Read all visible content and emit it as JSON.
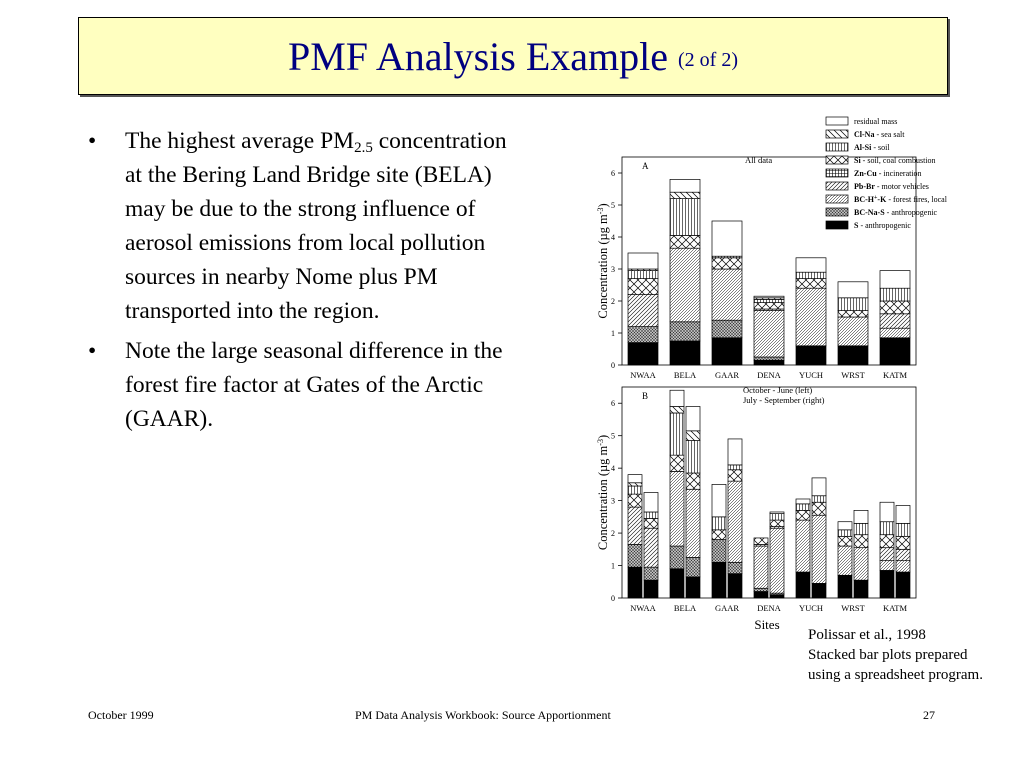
{
  "slide": {
    "title": "PMF Analysis Example",
    "title_suffix": "(2 of 2)",
    "bullets": [
      {
        "text_before": "The highest average PM",
        "subscript": "2.5",
        "text_after": " concentration at the Bering Land Bridge site (BELA) may be due to the strong influence of aerosol emissions from local pollution sources in nearby Nome plus PM transported into the region."
      },
      {
        "text_before": "Note the large seasonal difference in the forest fire factor at Gates of the Arctic (GAAR).",
        "subscript": "",
        "text_after": ""
      }
    ],
    "bullet_glyph": "•",
    "citation": [
      "Polissar et al., 1998",
      "Stacked bar plots prepared",
      "using a spreadsheet program."
    ],
    "footer": {
      "left": "October 1999",
      "center": "PM Data Analysis Workbook: Source Apportionment",
      "right": "27"
    },
    "colors": {
      "title_bg": "#ffffc0",
      "title_text": "#000080"
    }
  },
  "chart_data": [
    {
      "type": "bar",
      "stacked": true,
      "panel_label": "A",
      "annotation": [
        "All data"
      ],
      "ylabel": "Concentration  (µg m-3)",
      "ylim": [
        0,
        6.5
      ],
      "yticks": [
        0,
        1,
        2,
        3,
        4,
        5,
        6
      ],
      "categories": [
        "NWAA",
        "BELA",
        "GAAR",
        "DENA",
        "YUCH",
        "WRST",
        "KATM"
      ],
      "legend": {
        "placement": "top-right",
        "entries": [
          {
            "bold": "",
            "text": "residual mass",
            "pattern": "residual"
          },
          {
            "bold": "Cl-Na",
            "text": " - sea salt",
            "pattern": "seasalt"
          },
          {
            "bold": "Al-Si",
            "text": " - soil",
            "pattern": "soil"
          },
          {
            "bold": "Si",
            "text": " - soil, coal combustion",
            "pattern": "coal"
          },
          {
            "bold": "Zn-Cu",
            "text": " - incineration",
            "pattern": "incin"
          },
          {
            "bold": "Pb-Br",
            "text": " - motor vehicles",
            "pattern": "motor"
          },
          {
            "bold": "BC-H+-K",
            "text": " - forest fires, local",
            "pattern": "fire"
          },
          {
            "bold": "BC-Na-S",
            "text": " - anthropogenic",
            "pattern": "anthbc"
          },
          {
            "bold": "S",
            "text": " - anthropogenic",
            "pattern": "sulfate"
          }
        ]
      },
      "series_order": [
        "sulfate",
        "anthbc",
        "fire",
        "motor",
        "incin",
        "coal",
        "soil",
        "seasalt",
        "residual"
      ],
      "bars": [
        [
          [
            0.7,
            0.5,
            0.0,
            1.0,
            0.0,
            0.5,
            0.25,
            0.05,
            0.5
          ]
        ],
        [
          [
            0.75,
            0.6,
            2.3,
            0.0,
            0.0,
            0.4,
            1.15,
            0.2,
            0.4
          ]
        ],
        [
          [
            0.85,
            0.55,
            1.6,
            0.0,
            0.0,
            0.35,
            0.05,
            0.0,
            1.1
          ]
        ],
        [
          [
            0.15,
            0.1,
            1.45,
            0.05,
            0.0,
            0.2,
            0.1,
            0.05,
            0.05
          ]
        ],
        [
          [
            0.6,
            0.0,
            1.8,
            0.0,
            0.0,
            0.3,
            0.2,
            0.0,
            0.45
          ]
        ],
        [
          [
            0.6,
            0.0,
            0.9,
            0.0,
            0.0,
            0.2,
            0.4,
            0.0,
            0.5
          ]
        ],
        [
          [
            0.85,
            0.0,
            0.3,
            0.45,
            0.0,
            0.4,
            0.4,
            0.0,
            0.55
          ]
        ]
      ]
    },
    {
      "type": "bar",
      "stacked": true,
      "panel_label": "B",
      "annotation": [
        "October - June (left)",
        "July - September (right)"
      ],
      "ylabel": "Concentration  (µg m-3)",
      "xlabel": "Sites",
      "ylim": [
        0,
        6.5
      ],
      "yticks": [
        0,
        1,
        2,
        3,
        4,
        5,
        6
      ],
      "categories": [
        "NWAA",
        "BELA",
        "GAAR",
        "DENA",
        "YUCH",
        "WRST",
        "KATM"
      ],
      "series_order": [
        "sulfate",
        "anthbc",
        "fire",
        "motor",
        "incin",
        "coal",
        "soil",
        "seasalt",
        "residual"
      ],
      "bars": [
        [
          [
            0.95,
            0.7,
            0.0,
            1.15,
            0.0,
            0.4,
            0.25,
            0.1,
            0.25
          ],
          [
            0.55,
            0.4,
            0.0,
            1.2,
            0.0,
            0.3,
            0.2,
            0.0,
            0.6
          ]
        ],
        [
          [
            0.9,
            0.7,
            2.3,
            0.0,
            0.0,
            0.5,
            1.3,
            0.2,
            0.5
          ],
          [
            0.65,
            0.6,
            2.1,
            0.0,
            0.0,
            0.5,
            1.0,
            0.3,
            0.75
          ]
        ],
        [
          [
            1.1,
            0.7,
            0.0,
            0.0,
            0.0,
            0.3,
            0.4,
            0.0,
            1.0
          ],
          [
            0.75,
            0.35,
            2.5,
            0.0,
            0.0,
            0.35,
            0.15,
            0.0,
            0.8
          ]
        ],
        [
          [
            0.2,
            0.1,
            1.3,
            0.05,
            0.0,
            0.2,
            0.0,
            0.0,
            0.0
          ],
          [
            0.1,
            0.05,
            2.0,
            0.05,
            0.0,
            0.2,
            0.2,
            0.0,
            0.05
          ]
        ],
        [
          [
            0.8,
            0.0,
            1.6,
            0.0,
            0.0,
            0.3,
            0.2,
            0.0,
            0.15
          ],
          [
            0.45,
            0.0,
            2.1,
            0.0,
            0.0,
            0.4,
            0.2,
            0.0,
            0.55
          ]
        ],
        [
          [
            0.7,
            0.0,
            0.9,
            0.0,
            0.0,
            0.3,
            0.2,
            0.0,
            0.25
          ],
          [
            0.55,
            0.0,
            1.0,
            0.0,
            0.0,
            0.4,
            0.35,
            0.0,
            0.4
          ]
        ],
        [
          [
            0.85,
            0.0,
            0.3,
            0.4,
            0.0,
            0.4,
            0.4,
            0.0,
            0.6
          ],
          [
            0.8,
            0.0,
            0.35,
            0.35,
            0.0,
            0.4,
            0.4,
            0.0,
            0.55
          ]
        ]
      ]
    }
  ]
}
